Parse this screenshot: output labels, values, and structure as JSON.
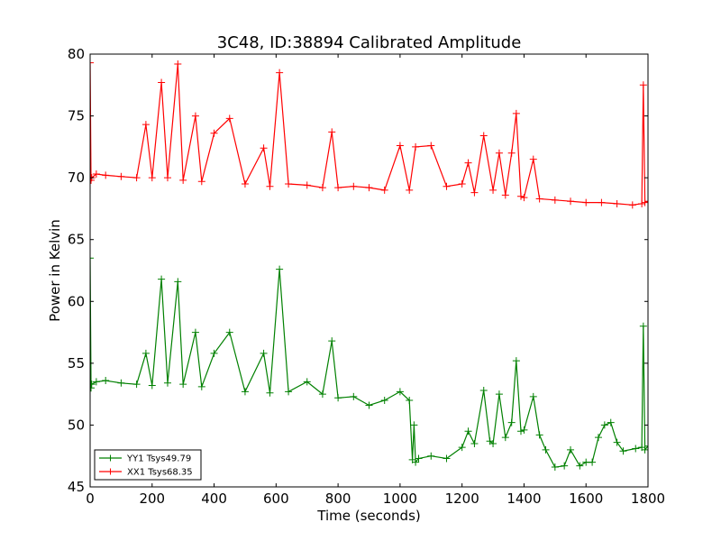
{
  "chart_data": {
    "type": "line",
    "title": "3C48, ID:38894 Calibrated Amplitude",
    "xlabel": "Time (seconds)",
    "ylabel": "Power in Kelvin",
    "xlim": [
      0,
      1800
    ],
    "ylim": [
      45,
      80
    ],
    "xticks": [
      "0",
      "200",
      "400",
      "600",
      "800",
      "1000",
      "1200",
      "1400",
      "1600",
      "1800"
    ],
    "yticks": [
      "45",
      "50",
      "55",
      "60",
      "65",
      "70",
      "75",
      "80"
    ],
    "grid": false,
    "legend_position": "lower-left",
    "marker": "+",
    "series": [
      {
        "name": "YY1 Tsys49.79",
        "color": "#008000",
        "x": [
          0,
          3,
          5,
          20,
          50,
          100,
          150,
          180,
          200,
          230,
          250,
          283,
          300,
          340,
          360,
          400,
          450,
          500,
          560,
          580,
          611,
          640,
          700,
          750,
          780,
          800,
          850,
          900,
          950,
          1000,
          1030,
          1040,
          1045,
          1050,
          1060,
          1100,
          1150,
          1200,
          1220,
          1240,
          1270,
          1290,
          1300,
          1320,
          1340,
          1360,
          1375,
          1390,
          1400,
          1430,
          1450,
          1470,
          1500,
          1530,
          1550,
          1580,
          1600,
          1620,
          1640,
          1660,
          1680,
          1700,
          1720,
          1760,
          1780,
          1785,
          1790,
          1800
        ],
        "y": [
          63.5,
          53.0,
          53.3,
          53.5,
          53.6,
          53.4,
          53.3,
          55.8,
          53.2,
          61.8,
          53.4,
          61.6,
          53.3,
          57.5,
          53.1,
          55.8,
          57.5,
          52.7,
          55.8,
          52.6,
          62.6,
          52.7,
          53.5,
          52.5,
          56.8,
          52.2,
          52.3,
          51.6,
          52.0,
          52.7,
          52.0,
          47.2,
          50.0,
          47.0,
          47.3,
          47.5,
          47.3,
          48.2,
          49.5,
          48.5,
          52.8,
          48.7,
          48.5,
          52.5,
          49.0,
          50.2,
          55.2,
          49.5,
          49.6,
          52.3,
          49.2,
          48.0,
          46.6,
          46.7,
          48.0,
          46.7,
          47.0,
          47.0,
          49.0,
          50.0,
          50.2,
          48.6,
          47.9,
          48.1,
          48.2,
          58.0,
          48.0,
          48.3
        ]
      },
      {
        "name": "XX1 Tsys68.35",
        "color": "#ff0000",
        "x": [
          0,
          3,
          5,
          20,
          50,
          100,
          150,
          180,
          200,
          230,
          250,
          283,
          300,
          340,
          360,
          400,
          450,
          500,
          560,
          580,
          611,
          640,
          700,
          750,
          780,
          800,
          850,
          900,
          950,
          1000,
          1030,
          1050,
          1100,
          1150,
          1200,
          1220,
          1240,
          1270,
          1300,
          1320,
          1340,
          1360,
          1375,
          1390,
          1400,
          1430,
          1450,
          1500,
          1550,
          1600,
          1650,
          1700,
          1750,
          1780,
          1785,
          1790,
          1800
        ],
        "y": [
          79.3,
          69.8,
          70.0,
          70.3,
          70.2,
          70.1,
          70.0,
          74.3,
          70.0,
          77.7,
          70.0,
          79.2,
          69.8,
          75.0,
          69.7,
          73.6,
          74.8,
          69.5,
          72.4,
          69.3,
          78.5,
          69.5,
          69.4,
          69.2,
          73.7,
          69.2,
          69.3,
          69.2,
          69.0,
          72.6,
          69.0,
          72.5,
          72.6,
          69.3,
          69.5,
          71.2,
          68.8,
          73.4,
          69.0,
          72.0,
          68.6,
          72.0,
          75.2,
          68.5,
          68.4,
          71.5,
          68.3,
          68.2,
          68.1,
          68.0,
          68.0,
          67.9,
          67.8,
          67.9,
          77.5,
          68.0,
          68.1
        ]
      }
    ]
  }
}
